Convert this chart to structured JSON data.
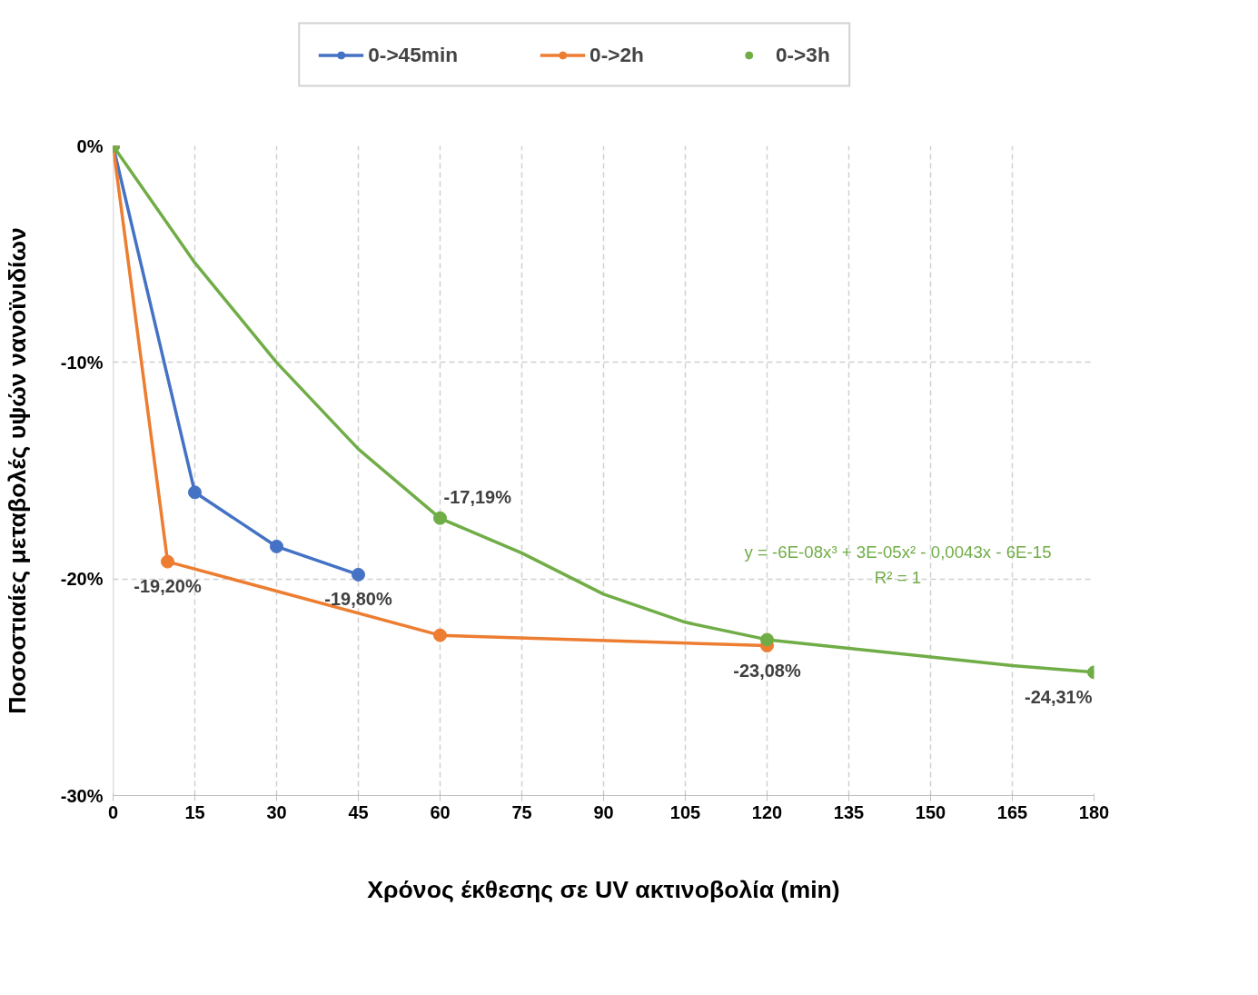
{
  "chart_data": {
    "type": "line",
    "xlabel": "Χρόνος έκθεσης σε UV ακτινοβολία (min)",
    "ylabel": "Ποσοστιαίες μεταβολές υψών νανοϊνιδίων",
    "xlim": [
      0,
      180
    ],
    "xticks": [
      0,
      15,
      30,
      45,
      60,
      75,
      90,
      105,
      120,
      135,
      150,
      165,
      180
    ],
    "ylim": [
      -30,
      0
    ],
    "yticks": [
      {
        "value": 0,
        "label": "0%"
      },
      {
        "value": -10,
        "label": "-10%"
      },
      {
        "value": -20,
        "label": "-20%"
      },
      {
        "value": -30,
        "label": "-30%"
      }
    ],
    "grid": true,
    "legend": "top",
    "marker": "circle",
    "series": [
      {
        "name": "0->45min",
        "color": "#4472c4",
        "x": [
          0,
          15,
          30,
          45
        ],
        "values": [
          0,
          -16.0,
          -18.5,
          -19.8
        ],
        "value_labels": [
          null,
          null,
          null,
          "-19,80%"
        ]
      },
      {
        "name": "0->2h",
        "color": "#ed7d31",
        "x": [
          0,
          10,
          60,
          120
        ],
        "values": [
          0,
          -19.2,
          -22.6,
          -23.08
        ],
        "value_labels": [
          null,
          "-19,20%",
          null,
          "-23,08%"
        ]
      },
      {
        "name": "0->3h",
        "type": "scatter",
        "color": "#70ad47",
        "x": [
          0,
          60,
          120,
          180
        ],
        "values": [
          0,
          -17.19,
          -22.8,
          -24.31
        ],
        "value_labels": [
          null,
          "-17,19%",
          null,
          "-24,31%"
        ]
      },
      {
        "marker": "none",
        "color": "#70ad47",
        "x": [
          0,
          15,
          30,
          45,
          60,
          75,
          90,
          105,
          120,
          135,
          150,
          165,
          180
        ],
        "values": [
          0,
          -5.4,
          -10.0,
          -14.0,
          -17.2,
          -18.8,
          -20.7,
          -22.0,
          -22.8,
          -23.2,
          -23.6,
          -24.0,
          -24.3
        ]
      }
    ],
    "annotations": [
      "y = -6E-08x³ + 3E-05x² - 0,0043x - 6E-15",
      "R² = 1"
    ]
  }
}
